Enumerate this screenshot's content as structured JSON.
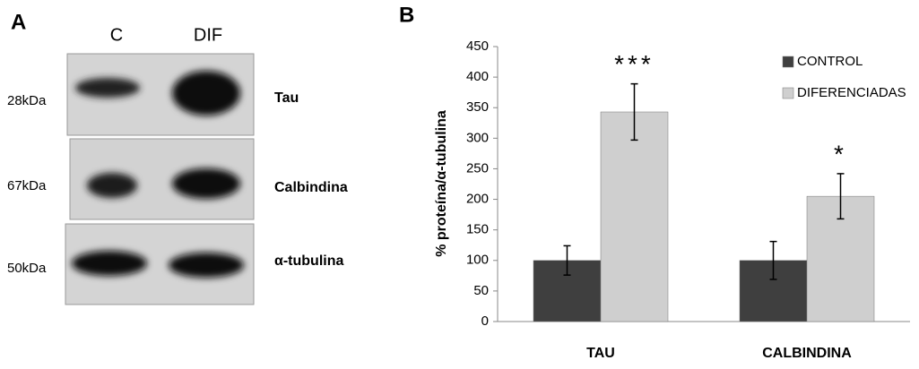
{
  "panel_a": {
    "label": "A",
    "lanes": [
      "C",
      "DIF"
    ],
    "rows": [
      {
        "marker": "28kDa",
        "protein": "Tau"
      },
      {
        "marker": "67kDa",
        "protein": "Calbindina"
      },
      {
        "marker": "50kDa",
        "protein": "α-tubulina"
      }
    ]
  },
  "chart_data": {
    "type": "bar",
    "label": "B",
    "ylabel": "% proteína/α-tubulina",
    "categories": [
      "TAU",
      "CALBINDINA"
    ],
    "series": [
      {
        "name": "CONTROL",
        "color": "#3f3f3f",
        "values": [
          100,
          100
        ],
        "errors": [
          24,
          31
        ]
      },
      {
        "name": "DIFERENCIADAS",
        "color": "#cfcfcf",
        "values": [
          343,
          205
        ],
        "errors": [
          46,
          37
        ]
      }
    ],
    "annotations": [
      "***",
      "*"
    ],
    "ylim": [
      0,
      450
    ],
    "yticks": [
      0,
      50,
      100,
      150,
      200,
      250,
      300,
      350,
      400,
      450
    ]
  }
}
